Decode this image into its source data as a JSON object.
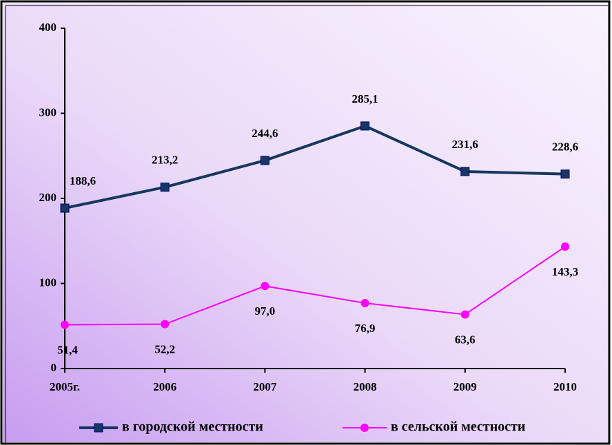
{
  "chart_data": {
    "type": "line",
    "categories": [
      "2005г.",
      "2006",
      "2007",
      "2008",
      "2009",
      "2010"
    ],
    "series": [
      {
        "name": "в городской местности",
        "color": "#17375e",
        "marker": "square",
        "values": [
          188.6,
          213.2,
          244.6,
          285.1,
          231.6,
          228.6
        ],
        "value_labels": [
          "188,6",
          "213,2",
          "244,6",
          "285,1",
          "231,6",
          "228,6"
        ]
      },
      {
        "name": "в сельской местности",
        "color": "#ff00ff",
        "marker": "circle",
        "values": [
          51.4,
          52.2,
          97.0,
          76.9,
          63.6,
          143.3
        ],
        "value_labels": [
          "51,4",
          "52,2",
          "97,0",
          "76,9",
          "63,6",
          "143,3"
        ]
      }
    ],
    "ylim": [
      0,
      400
    ],
    "yticks": [
      0,
      100,
      200,
      300,
      400
    ],
    "grid": false,
    "legend": "bottom"
  }
}
